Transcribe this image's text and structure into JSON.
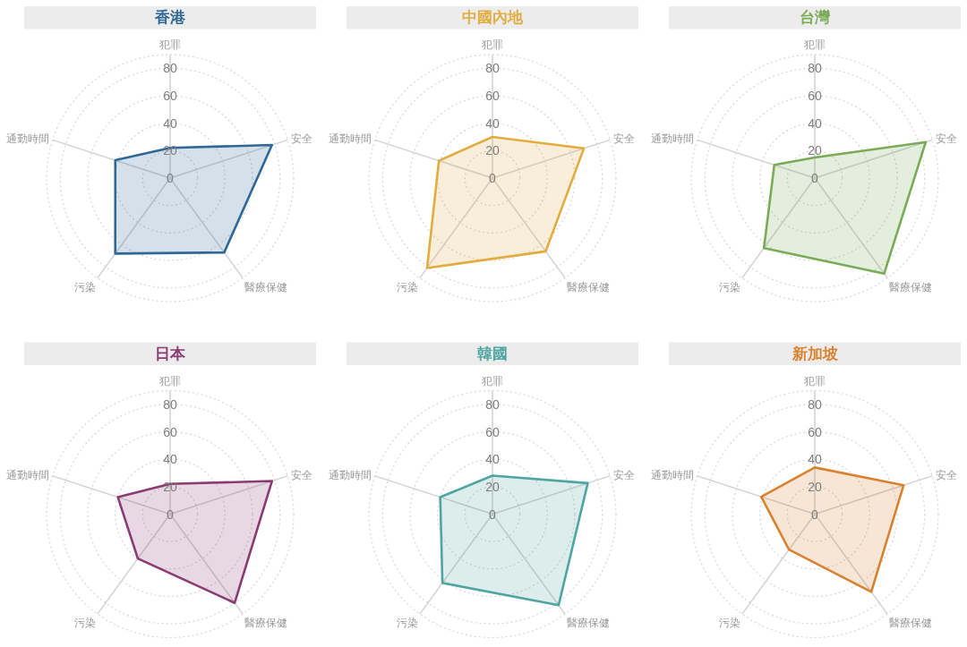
{
  "chart_data": [
    {
      "type": "radar",
      "title": "香港",
      "categories": [
        "犯罪",
        "安全",
        "醫療保健",
        "污染",
        "通勤時間"
      ],
      "series": [
        {
          "color": "#2f6896",
          "values": [
            22,
            78,
            67,
            68,
            42
          ]
        }
      ],
      "ylim": [
        0,
        90
      ],
      "yticks": [
        0,
        20,
        40,
        60,
        80
      ],
      "grid": true
    },
    {
      "type": "radar",
      "title": "中國內地",
      "categories": [
        "犯罪",
        "安全",
        "醫療保健",
        "污染",
        "通勤時間"
      ],
      "series": [
        {
          "color": "#e2ac3f",
          "values": [
            30,
            70,
            66,
            81,
            41
          ]
        }
      ],
      "ylim": [
        0,
        90
      ],
      "yticks": [
        0,
        20,
        40,
        60,
        80
      ],
      "grid": true
    },
    {
      "type": "radar",
      "title": "台灣",
      "categories": [
        "犯罪",
        "安全",
        "醫療保健",
        "污染",
        "通勤時間"
      ],
      "series": [
        {
          "color": "#7aab56",
          "values": [
            15,
            85,
            86,
            63,
            31
          ]
        }
      ],
      "ylim": [
        0,
        90
      ],
      "yticks": [
        0,
        20,
        40,
        60,
        80
      ],
      "grid": true
    },
    {
      "type": "radar",
      "title": "日本",
      "categories": [
        "犯罪",
        "安全",
        "醫療保健",
        "污染",
        "通勤時間"
      ],
      "series": [
        {
          "color": "#8a3b72",
          "values": [
            22,
            78,
            80,
            40,
            40
          ]
        }
      ],
      "ylim": [
        0,
        90
      ],
      "yticks": [
        0,
        20,
        40,
        60,
        80
      ],
      "grid": true
    },
    {
      "type": "radar",
      "title": "韓國",
      "categories": [
        "犯罪",
        "安全",
        "醫療保健",
        "污染",
        "通勤時間"
      ],
      "series": [
        {
          "color": "#4ea5a2",
          "values": [
            28,
            73,
            82,
            62,
            40
          ]
        }
      ],
      "ylim": [
        0,
        90
      ],
      "yticks": [
        0,
        20,
        40,
        60,
        80
      ],
      "grid": true
    },
    {
      "type": "radar",
      "title": "新加坡",
      "categories": [
        "犯罪",
        "安全",
        "醫療保健",
        "污染",
        "通勤時間"
      ],
      "series": [
        {
          "color": "#d9822f",
          "values": [
            34,
            68,
            70,
            32,
            41
          ]
        }
      ],
      "ylim": [
        0,
        90
      ],
      "yticks": [
        0,
        20,
        40,
        60,
        80
      ],
      "grid": true
    }
  ]
}
